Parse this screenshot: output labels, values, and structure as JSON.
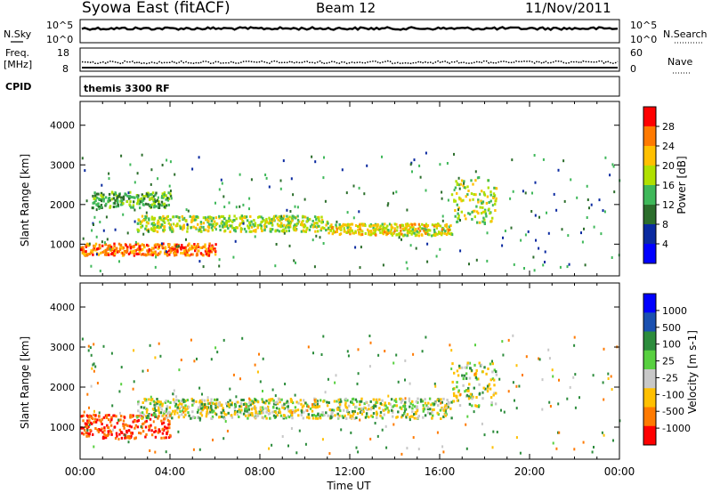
{
  "header": {
    "title": "Syowa East (fitACF)",
    "beam": "Beam 12",
    "date": "11/Nov/2011"
  },
  "noise_panel": {
    "left_label": "N.Sky",
    "left_ticks": [
      "10^5",
      "10^0"
    ],
    "right_ticks": [
      "10^5",
      "10^0"
    ],
    "right_label": "N.Search"
  },
  "freq_panel": {
    "left_label_line1": "Freq.",
    "left_label_line2": "[MHz]",
    "left_ticks": [
      "18",
      "8"
    ],
    "right_ticks": [
      "60",
      "0"
    ],
    "right_label": "Nave"
  },
  "cpid_panel": {
    "label": "CPID",
    "text": "themis 3300 RF"
  },
  "x_axis": {
    "title": "Time UT",
    "ticks": [
      "00:00",
      "04:00",
      "08:00",
      "12:00",
      "16:00",
      "20:00",
      "00:00"
    ]
  },
  "chart_data": [
    {
      "type": "heatmap",
      "name": "power",
      "ylabel": "Slant Range [km]",
      "yticks": [
        "1000",
        "2000",
        "3000",
        "4000"
      ],
      "ylim": [
        200,
        4600
      ],
      "xlim": [
        0,
        24
      ],
      "colorbar": {
        "label": "Power [dB]",
        "ticks": [
          "28",
          "24",
          "20",
          "16",
          "12",
          "8",
          "4"
        ],
        "colors": [
          "#ff0000",
          "#ff7a00",
          "#ffc000",
          "#b0e000",
          "#3fb85a",
          "#2c6e2c",
          "#0a2aa0",
          "#0000ff"
        ]
      },
      "echo_bands": [
        {
          "t": [
            0.5,
            4.0
          ],
          "range_km": [
            1900,
            2300
          ],
          "power_db": 12
        },
        {
          "t": [
            2.5,
            11.0
          ],
          "range_km": [
            1300,
            1700
          ],
          "power_db": 16
        },
        {
          "t": [
            11.0,
            16.5
          ],
          "range_km": [
            1200,
            1500
          ],
          "power_db": 18
        },
        {
          "t": [
            16.5,
            18.5
          ],
          "range_km": [
            1500,
            2600
          ],
          "power_db": 16
        },
        {
          "t": [
            0.0,
            6.0
          ],
          "range_km": [
            700,
            1000
          ],
          "power_db": 24
        }
      ]
    },
    {
      "type": "heatmap",
      "name": "velocity",
      "ylabel": "Slant Range [km]",
      "yticks": [
        "1000",
        "2000",
        "3000",
        "4000"
      ],
      "ylim": [
        200,
        4600
      ],
      "xlim": [
        0,
        24
      ],
      "colorbar": {
        "label": "Velocity [m s-1]",
        "ticks": [
          "1000",
          "500",
          "100",
          "25",
          "-25",
          "-100",
          "-500",
          "-1000"
        ],
        "colors": [
          "#0000ff",
          "#1a50b0",
          "#2c8c3c",
          "#58d040",
          "#c8c8c8",
          "#ffc000",
          "#ff7a00",
          "#ff0000"
        ]
      },
      "echo_bands": [
        {
          "t": [
            0.0,
            4.0
          ],
          "range_km": [
            700,
            1300
          ],
          "velocity_ms": -500
        },
        {
          "t": [
            2.5,
            16.5
          ],
          "range_km": [
            1200,
            1700
          ],
          "velocity_ms": 0
        },
        {
          "t": [
            16.5,
            18.5
          ],
          "range_km": [
            1500,
            2600
          ],
          "velocity_ms": 0
        }
      ]
    }
  ]
}
